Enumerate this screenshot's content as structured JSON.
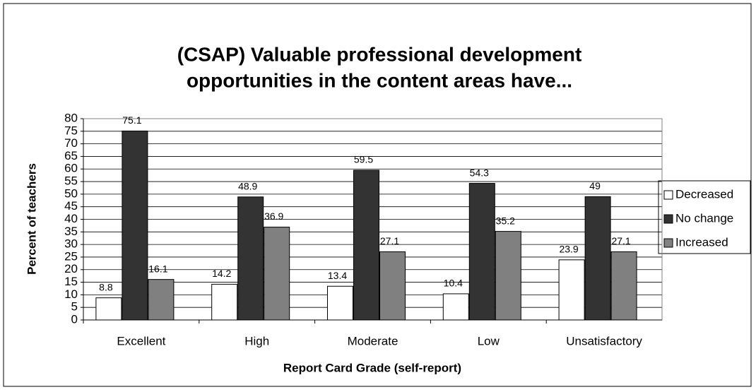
{
  "chart_data": {
    "type": "bar",
    "title": [
      "(CSAP) Valuable professional development",
      "opportunities in the content areas have..."
    ],
    "x_label": "Report Card Grade (self-report)",
    "y_label": "Percent of teachers",
    "categories": [
      "Excellent",
      "High",
      "Moderate",
      "Low",
      "Unsatisfactory"
    ],
    "series": [
      {
        "name": "Decreased",
        "color": "#ffffff",
        "values": [
          8.8,
          14.2,
          13.4,
          10.4,
          23.9
        ]
      },
      {
        "name": "No change",
        "color": "#333333",
        "values": [
          75.1,
          48.9,
          59.5,
          54.3,
          49
        ]
      },
      {
        "name": "Increased",
        "color": "#808080",
        "values": [
          16.1,
          36.9,
          27.1,
          35.2,
          27.1
        ]
      }
    ],
    "ylim": [
      0,
      80
    ],
    "yticks": [
      0,
      5,
      10,
      15,
      20,
      25,
      30,
      35,
      40,
      45,
      50,
      55,
      60,
      65,
      70,
      75,
      80
    ],
    "grid": true,
    "legend": "right"
  }
}
